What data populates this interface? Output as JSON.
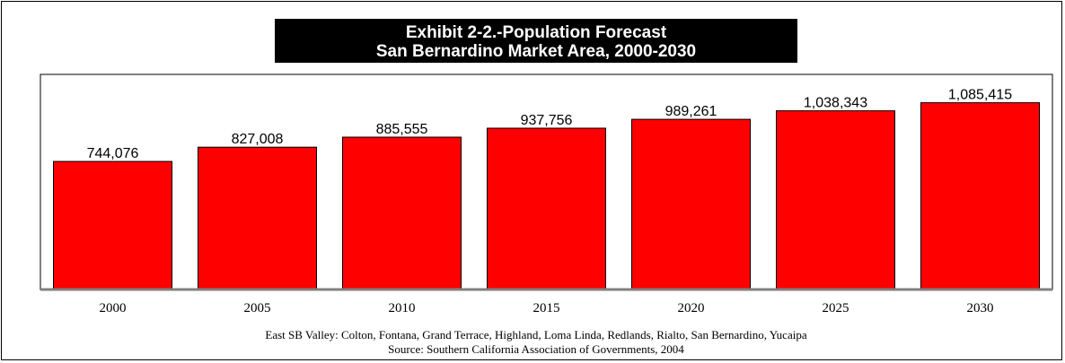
{
  "chart_data": {
    "type": "bar",
    "title_lines": [
      "Exhibit 2-2.-Population Forecast",
      "San Bernardino Market Area, 2000-2030"
    ],
    "categories": [
      "2000",
      "2005",
      "2010",
      "2015",
      "2020",
      "2025",
      "2030"
    ],
    "values": [
      744076,
      827008,
      885555,
      937756,
      989261,
      1038343,
      1085415
    ],
    "value_labels": [
      "744,076",
      "827,008",
      "885,555",
      "937,756",
      "989,261",
      "1,038,343",
      "1,085,415"
    ],
    "ylim": [
      0,
      1250000
    ],
    "grid": false,
    "legend": "none",
    "footnotes": [
      "East SB Valley: Colton, Fontana, Grand Terrace, Highland, Loma Linda, Redlands, Rialto, San Bernardino, Yucaipa",
      "Source:  Southern California Association of Governments, 2004"
    ],
    "colors": {
      "bar": "#ff0000",
      "bar_stroke": "#000000",
      "title_bg": "#000000",
      "title_text": "#ffffff",
      "baseline": "#808080"
    }
  }
}
